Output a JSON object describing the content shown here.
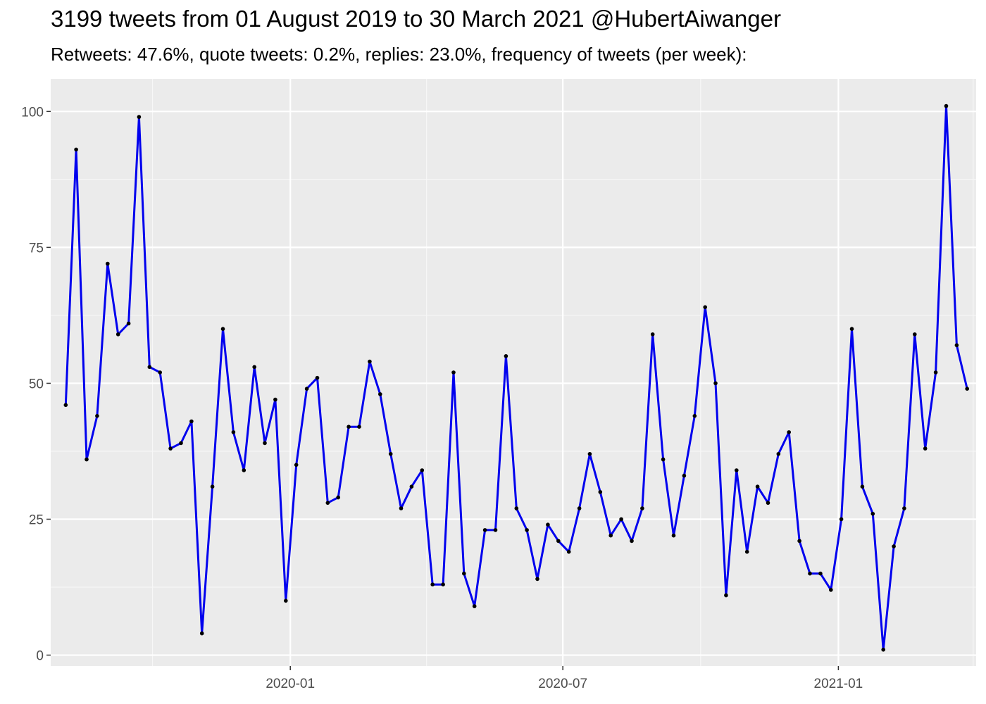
{
  "chart_data": {
    "type": "line",
    "title": "3199 tweets from 01 August 2019 to 30 March 2021 @HubertAiwanger",
    "subtitle": "Retweets: 47.6%, quote tweets: 0.2%, replies: 23.0%, frequency of tweets (per week):",
    "xlabel": "",
    "ylabel": "",
    "grid": true,
    "ylim": [
      -2,
      106
    ],
    "xlim": [
      "2019-07-25",
      "2021-04-03"
    ],
    "yticks": [
      0,
      25,
      50,
      75,
      100
    ],
    "yticks_labels": [
      "0",
      "25",
      "50",
      "75",
      "100"
    ],
    "xticks": [
      "2020-01-01",
      "2020-07-01",
      "2021-01-01"
    ],
    "xticks_labels": [
      "2020-01",
      "2020-07",
      "2021-01"
    ],
    "x": [
      "2019-08-04",
      "2019-08-11",
      "2019-08-18",
      "2019-08-25",
      "2019-09-01",
      "2019-09-08",
      "2019-09-15",
      "2019-09-22",
      "2019-09-29",
      "2019-10-06",
      "2019-10-13",
      "2019-10-20",
      "2019-10-27",
      "2019-11-03",
      "2019-11-10",
      "2019-11-17",
      "2019-11-24",
      "2019-12-01",
      "2019-12-08",
      "2019-12-15",
      "2019-12-22",
      "2019-12-29",
      "2020-01-05",
      "2020-01-12",
      "2020-01-19",
      "2020-01-26",
      "2020-02-02",
      "2020-02-09",
      "2020-02-16",
      "2020-02-23",
      "2020-03-01",
      "2020-03-08",
      "2020-03-15",
      "2020-03-22",
      "2020-03-29",
      "2020-04-05",
      "2020-04-12",
      "2020-04-19",
      "2020-04-26",
      "2020-05-03",
      "2020-05-10",
      "2020-05-17",
      "2020-05-24",
      "2020-05-31",
      "2020-06-07",
      "2020-06-14",
      "2020-06-21",
      "2020-06-28",
      "2020-07-05",
      "2020-07-12",
      "2020-07-19",
      "2020-07-26",
      "2020-08-02",
      "2020-08-09",
      "2020-08-16",
      "2020-08-23",
      "2020-08-30",
      "2020-09-06",
      "2020-09-13",
      "2020-09-20",
      "2020-09-27",
      "2020-10-04",
      "2020-10-11",
      "2020-10-18",
      "2020-10-25",
      "2020-11-01",
      "2020-11-08",
      "2020-11-15",
      "2020-11-22",
      "2020-11-29",
      "2020-12-06",
      "2020-12-13",
      "2020-12-20",
      "2020-12-27",
      "2021-01-03",
      "2021-01-10",
      "2021-01-17",
      "2021-01-24",
      "2021-01-31",
      "2021-02-07",
      "2021-02-14",
      "2021-02-21",
      "2021-02-28",
      "2021-03-07",
      "2021-03-14",
      "2021-03-21",
      "2021-03-28"
    ],
    "series": [
      {
        "values": [
          46,
          93,
          36,
          44,
          72,
          59,
          61,
          99,
          53,
          52,
          38,
          39,
          43,
          4,
          31,
          60,
          41,
          34,
          53,
          39,
          47,
          10,
          35,
          49,
          51,
          28,
          29,
          42,
          42,
          54,
          48,
          37,
          27,
          31,
          34,
          13,
          13,
          52,
          15,
          9,
          23,
          23,
          55,
          27,
          23,
          14,
          24,
          21,
          19,
          27,
          37,
          30,
          22,
          25,
          21,
          27,
          59,
          36,
          22,
          33,
          44,
          64,
          50,
          11,
          34,
          19,
          31,
          28,
          37,
          41,
          21,
          15,
          15,
          12,
          25,
          60,
          31,
          26,
          1,
          20,
          27,
          59,
          38,
          52,
          101,
          57,
          49
        ],
        "color": "#0000ee",
        "point_color": "#000000"
      }
    ],
    "colors": {
      "panel": "#ebebeb",
      "grid_major": "#ffffff",
      "grid_minor": "#f7f7f7",
      "axis_text": "#4d4d4d",
      "line": "#0000ee"
    }
  }
}
